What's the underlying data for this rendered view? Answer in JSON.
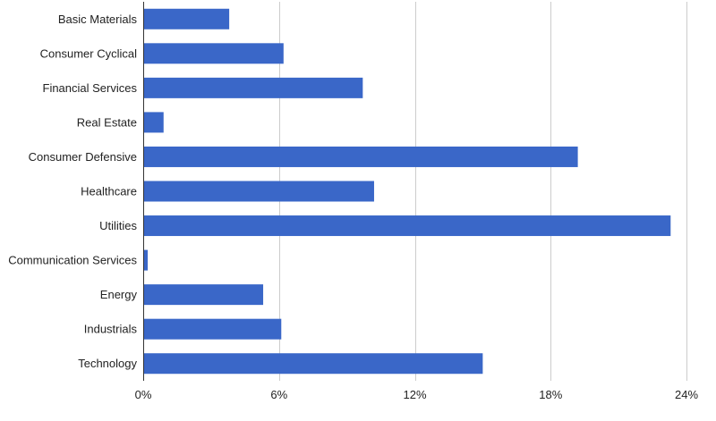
{
  "chart_data": {
    "type": "bar",
    "orientation": "horizontal",
    "categories": [
      "Basic Materials",
      "Consumer Cyclical",
      "Financial Services",
      "Real Estate",
      "Consumer Defensive",
      "Healthcare",
      "Utilities",
      "Communication Services",
      "Energy",
      "Industrials",
      "Technology"
    ],
    "values": [
      3.8,
      6.2,
      9.7,
      0.9,
      19.2,
      10.2,
      23.3,
      0.2,
      5.3,
      6.1,
      15.0
    ],
    "title": "",
    "xlabel": "",
    "ylabel": "",
    "xlim": [
      0,
      24
    ],
    "xticks": [
      0,
      6,
      12,
      18,
      24
    ],
    "xtick_labels": [
      "0%",
      "6%",
      "12%",
      "18%",
      "24%"
    ],
    "grid": true,
    "legend": "none",
    "bar_color": "#3a67c8",
    "grid_color": "#cccccc",
    "axis_color": "#333333"
  }
}
